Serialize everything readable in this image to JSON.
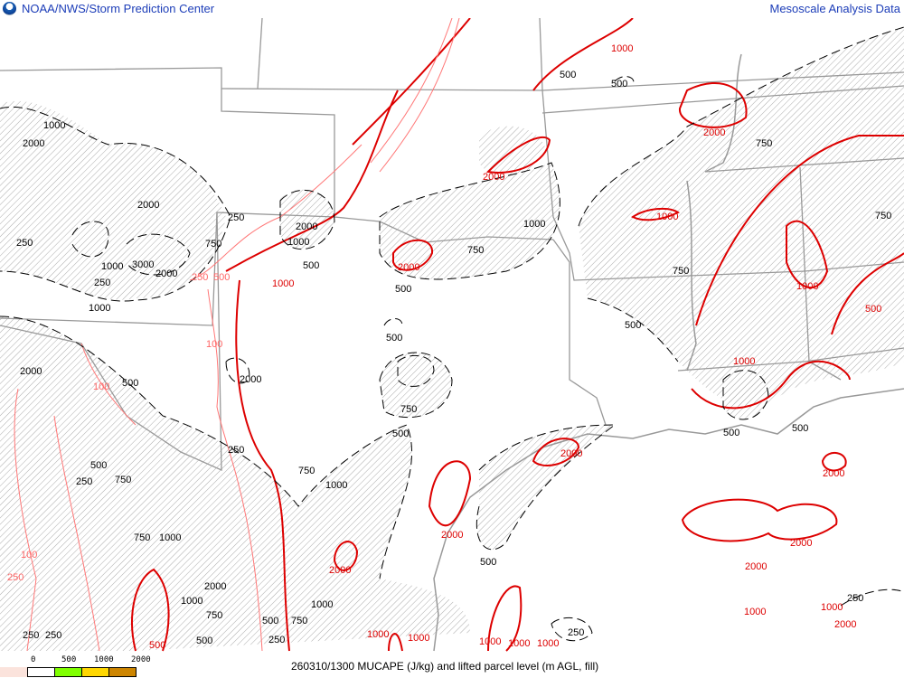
{
  "header": {
    "title": "NOAA/NWS/Storm Prediction Center",
    "right_title": "Mesoscale Analysis Data",
    "logo": "noaa-logo"
  },
  "footer": {
    "caption": "260310/1300 MUCAPE (J/kg) and lifted parcel level (m AGL, fill)",
    "legend": {
      "ticks": [
        "0",
        "500",
        "1000",
        "2000"
      ],
      "colors": [
        "#fbe3dc",
        "#ffffff",
        "#80ff00",
        "#ffd700",
        "#cd8500"
      ]
    }
  },
  "colors": {
    "mucape": "#dd0000",
    "mucape_low": "#ff6666",
    "lpl": "#000000",
    "fill_hatch": "#999999",
    "boundaries": "#999999"
  },
  "labels": {
    "red": [
      "1000",
      "2000",
      "2000",
      "1000",
      "2000",
      "1000",
      "1000",
      "500",
      "1000",
      "2000",
      "2000",
      "2000",
      "2000",
      "2000",
      "2000",
      "1000",
      "1000",
      "2000",
      "1000",
      "1000",
      "1000",
      "1000",
      "1000",
      "500"
    ],
    "pink": [
      "250",
      "500",
      "100",
      "100",
      "100",
      "250"
    ],
    "black": [
      "500",
      "500",
      "750",
      "2000",
      "1000",
      "750",
      "750",
      "500",
      "500",
      "500",
      "750",
      "500",
      "500",
      "500",
      "250",
      "750",
      "2000",
      "1000",
      "500",
      "3000",
      "2000",
      "1000",
      "250",
      "1000",
      "250",
      "2000",
      "1000",
      "2000",
      "500",
      "2000",
      "250",
      "500",
      "250",
      "750",
      "750",
      "1000",
      "750",
      "1000",
      "2000",
      "1000",
      "750",
      "500",
      "1000",
      "500",
      "750",
      "250",
      "250",
      "250",
      "250",
      "500",
      "250",
      "750"
    ]
  }
}
